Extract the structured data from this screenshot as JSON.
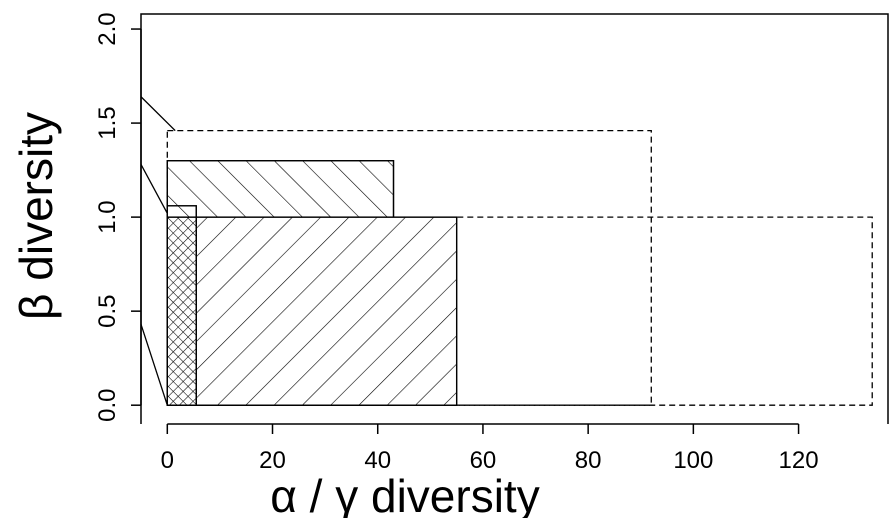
{
  "chart_data": {
    "type": "area",
    "xlabel": "α / γ diversity",
    "ylabel": "β diversity",
    "xlim": [
      -5,
      137
    ],
    "ylim": [
      -0.1,
      2.08
    ],
    "x_ticks": [
      0,
      20,
      40,
      60,
      80,
      100,
      120
    ],
    "y_ticks": [
      0.0,
      0.5,
      1.0,
      1.5,
      2.0
    ],
    "x_tick_labels": [
      "0",
      "20",
      "40",
      "60",
      "80",
      "100",
      "120"
    ],
    "y_tick_labels": [
      "0.0",
      "0.5",
      "1.0",
      "1.5",
      "2.0"
    ],
    "grid": false,
    "legend": "none",
    "rectangles": [
      {
        "x0": 0,
        "x1": 92,
        "y0": 0,
        "y1": 1.46,
        "line": "dashed",
        "hatch": "none"
      },
      {
        "x0": 0,
        "x1": 134,
        "y0": 0,
        "y1": 1.0,
        "line": "dashed",
        "hatch": "none"
      },
      {
        "x0": 0,
        "x1": 43,
        "y0": 0,
        "y1": 1.3,
        "line": "solid",
        "hatch": "forward"
      },
      {
        "x0": 0,
        "x1": 55,
        "y0": 0,
        "y1": 1.0,
        "line": "solid",
        "hatch": "backward"
      },
      {
        "x0": 0,
        "x1": 5.5,
        "y0": 0,
        "y1": 1.06,
        "line": "solid",
        "hatch": "forward"
      },
      {
        "x0": 0,
        "x1": 5.5,
        "y0": 0,
        "y1": 1.0,
        "line": "solid",
        "hatch": "cross-dense"
      }
    ],
    "connector_lines": [
      {
        "y_left": 1.64,
        "x": 1.5,
        "y": 1.46
      },
      {
        "y_left": 1.28,
        "x": 0,
        "y": 1.02
      },
      {
        "y_left": 0.43,
        "x": 0,
        "y": 0.0
      }
    ],
    "colors": {
      "line": "#000000",
      "background": "#ffffff"
    }
  }
}
